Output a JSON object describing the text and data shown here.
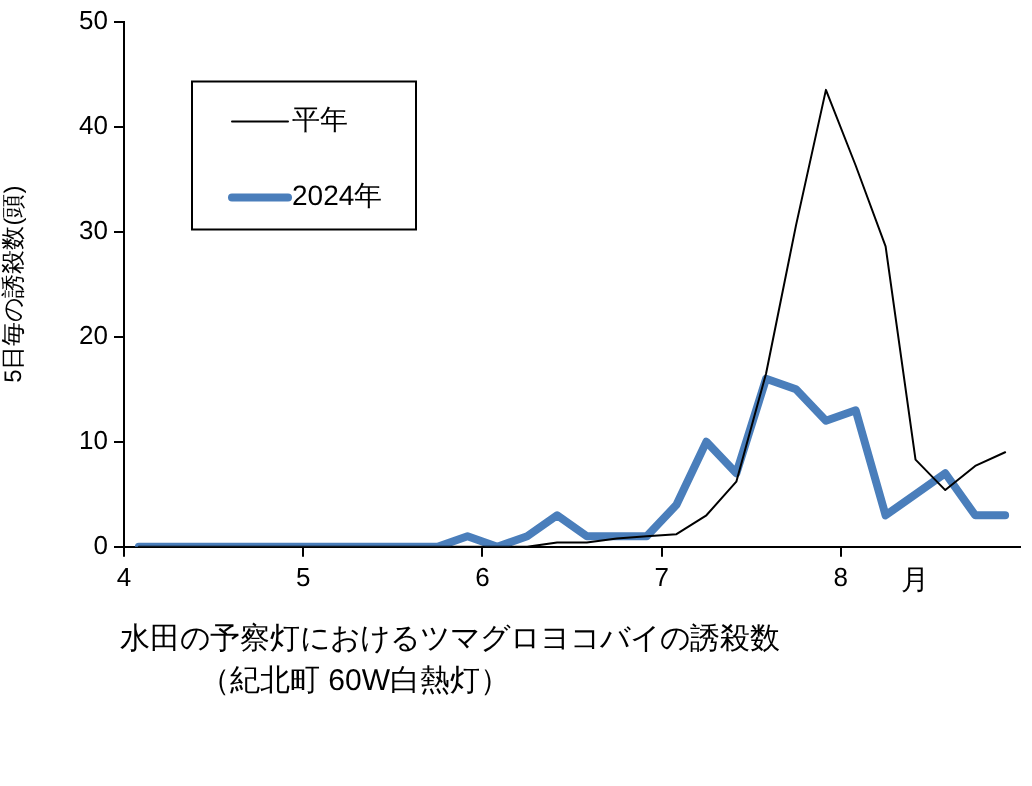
{
  "chart_data": {
    "type": "line",
    "title": "水田の予察灯におけるツマグロヨコバイの誘殺数",
    "subtitle": "（紀北町 60W白熱灯）",
    "xlabel": "月",
    "ylabel": "5日毎の誘殺数(頭)",
    "x": [
      4.083,
      4.25,
      4.417,
      4.583,
      4.75,
      4.917,
      5.083,
      5.25,
      5.417,
      5.583,
      5.75,
      5.917,
      6.083,
      6.25,
      6.417,
      6.583,
      6.75,
      6.917,
      7.083,
      7.25,
      7.417,
      7.583,
      7.75,
      7.917,
      8.083,
      8.25,
      8.417,
      8.583,
      8.75,
      8.917
    ],
    "series": [
      {
        "name": "平年",
        "color": "#000000",
        "values": [
          0,
          0,
          0,
          0,
          0,
          0,
          0,
          0,
          0,
          0,
          0,
          0,
          0,
          0,
          0.4,
          0.4,
          0.8,
          1,
          1.2,
          3,
          6.2,
          16.5,
          30.6,
          43.5,
          36.3,
          28.6,
          8.3,
          5.4,
          7.7,
          9
        ]
      },
      {
        "name": "2024年",
        "color": "#4a7ebb",
        "values": [
          0,
          0,
          0,
          0,
          0,
          0,
          0,
          0,
          0,
          0,
          0,
          1,
          0,
          1,
          3,
          1,
          1,
          1,
          4,
          10,
          7,
          16,
          15,
          12,
          13,
          3,
          5,
          7,
          3,
          3
        ]
      }
    ],
    "xlim": [
      4,
      9
    ],
    "xticks": [
      4,
      5,
      6,
      7,
      8
    ],
    "ylim": [
      0,
      50
    ],
    "yticks": [
      0,
      10,
      20,
      30,
      40,
      50
    ],
    "grid": false,
    "legend": "top left",
    "marker": "none",
    "line_style": "solid"
  }
}
